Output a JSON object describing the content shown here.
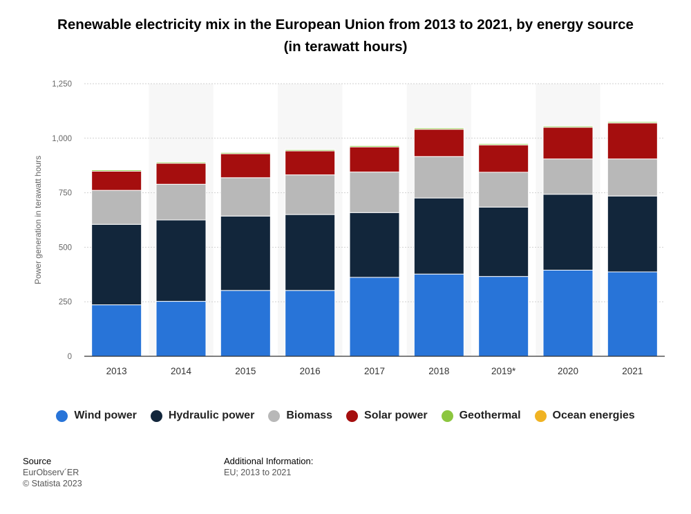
{
  "header": {
    "title_line1": "Renewable electricity mix in the European Union from 2013 to 2021, by energy source",
    "title_line2": "(in terawatt hours)"
  },
  "chart_data": {
    "type": "bar",
    "stacked": true,
    "title": "Renewable electricity mix in the European Union from 2013 to 2021, by energy source (in terawatt hours)",
    "xlabel": "",
    "ylabel": "Power generation in terawatt hours",
    "ylim": [
      0,
      1250
    ],
    "yticks": [
      0,
      250,
      500,
      750,
      1000,
      1250
    ],
    "ytick_labels": [
      "0",
      "250",
      "500",
      "750",
      "1,000",
      "1,250"
    ],
    "grid": true,
    "legend_position": "bottom",
    "categories": [
      "2013",
      "2014",
      "2015",
      "2016",
      "2017",
      "2018",
      "2019*",
      "2020",
      "2021"
    ],
    "series": [
      {
        "name": "Wind power",
        "color": "#2874d8",
        "values": [
          236,
          252,
          302,
          302,
          362,
          377,
          366,
          395,
          387
        ]
      },
      {
        "name": "Hydraulic power",
        "color": "#12263b",
        "values": [
          369,
          373,
          341,
          348,
          297,
          349,
          318,
          348,
          348
        ]
      },
      {
        "name": "Biomass",
        "color": "#b8b8b8",
        "values": [
          156,
          164,
          176,
          182,
          186,
          190,
          160,
          162,
          170
        ]
      },
      {
        "name": "Solar power",
        "color": "#a50e0e",
        "values": [
          88,
          96,
          110,
          110,
          115,
          125,
          125,
          145,
          165
        ]
      },
      {
        "name": "Geothermal",
        "color": "#8cc63f",
        "values": [
          6,
          6,
          6,
          6,
          6,
          6,
          6,
          6,
          6
        ]
      },
      {
        "name": "Ocean energies",
        "color": "#f0b323",
        "values": [
          0.5,
          0.5,
          0.5,
          0.5,
          0.5,
          0.5,
          0.5,
          0.5,
          0.5
        ]
      }
    ]
  },
  "footer": {
    "source_label": "Source",
    "source_line1": "EurObserv´ER",
    "source_line2": "© Statista 2023",
    "info_label": "Additional Information:",
    "info_line1": "EU; 2013 to 2021"
  }
}
